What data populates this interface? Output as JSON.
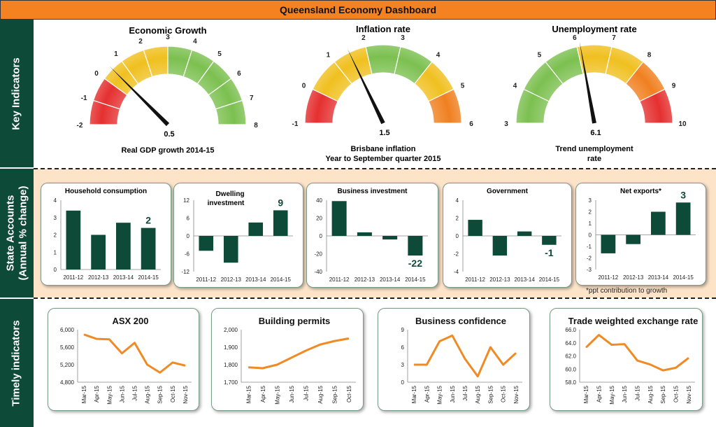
{
  "title": "Queensland Economy Dashboard",
  "sections": {
    "key": "Key Indicators",
    "state": "State Accounts (Annual % change)",
    "timely": "Timely indicators"
  },
  "footnote": "*ppt contribution to growth",
  "gauges": [
    {
      "title": "Economic Growth",
      "subtitle_lines": [
        "Real GDP growth 2014-15"
      ],
      "ticks": [
        "-2",
        "-1",
        "0",
        "1",
        "2",
        "3",
        "4",
        "5",
        "6",
        "7",
        "8"
      ],
      "min": -2,
      "max": 8,
      "value": 0.5,
      "value_label": "0.5",
      "colors": [
        "#e53030",
        "#e53030",
        "#f0c020",
        "#f0c020",
        "#f0c020",
        "#7cc050",
        "#7cc050",
        "#7cc050",
        "#7cc050",
        "#7cc050"
      ]
    },
    {
      "title": "Inflation rate",
      "subtitle_lines": [
        "Brisbane inflation",
        "Year to September quarter 2015"
      ],
      "ticks": [
        "-1",
        "0",
        "1",
        "2",
        "3",
        "4",
        "5",
        "6"
      ],
      "min": -1,
      "max": 6,
      "value": 1.5,
      "value_label": "1.5",
      "colors": [
        "#e53030",
        "#f0c020",
        "#f0c020",
        "#7cc050",
        "#7cc050",
        "#f0c020",
        "#f08020"
      ]
    },
    {
      "title": "Unemployment rate",
      "subtitle_lines": [
        "Trend unemployment",
        "rate"
      ],
      "ticks": [
        "3",
        "4",
        "5",
        "6",
        "7",
        "8",
        "9",
        "10"
      ],
      "min": 3,
      "max": 10,
      "value": 6.1,
      "value_label": "6.1",
      "colors": [
        "#7cc050",
        "#7cc050",
        "#7cc050",
        "#f0c020",
        "#f0c020",
        "#f08020",
        "#e53030"
      ]
    }
  ],
  "chart_data": [
    {
      "type": "bar",
      "title": "Household consumption",
      "categories": [
        "2011-12",
        "2012-13",
        "2013-14",
        "2014-15"
      ],
      "values": [
        3.4,
        2.0,
        2.7,
        2.4
      ],
      "ylim": [
        0,
        4
      ],
      "yticks": [
        0,
        1,
        2,
        3,
        4
      ],
      "data_label": "2"
    },
    {
      "type": "bar",
      "title": "Dwelling investment",
      "categories": [
        "2011-12",
        "2012-13",
        "2013-14",
        "2014-15"
      ],
      "values": [
        -5,
        -9,
        4.5,
        8.6
      ],
      "ylim": [
        -12,
        12
      ],
      "yticks": [
        -12,
        -6,
        0,
        6,
        12
      ],
      "data_label": "9"
    },
    {
      "type": "bar",
      "title": "Business investment",
      "categories": [
        "2011-12",
        "2012-13",
        "2013-14",
        "2014-15"
      ],
      "values": [
        39,
        4,
        -4,
        -22
      ],
      "ylim": [
        -40,
        40
      ],
      "yticks": [
        -40,
        -20,
        0,
        20,
        40
      ],
      "data_label": "-22"
    },
    {
      "type": "bar",
      "title": "Government",
      "categories": [
        "2011-12",
        "2012-13",
        "2013-14",
        "2014-15"
      ],
      "values": [
        1.8,
        -2.2,
        0.5,
        -1.0
      ],
      "ylim": [
        -4,
        4
      ],
      "yticks": [
        -4,
        -2,
        0,
        2,
        4
      ],
      "data_label": "-1"
    },
    {
      "type": "bar",
      "title": "Net exports*",
      "categories": [
        "2011-12",
        "2012-13",
        "2013-14",
        "2014-15"
      ],
      "values": [
        -1.6,
        -0.8,
        2.0,
        2.8
      ],
      "ylim": [
        -3,
        3
      ],
      "yticks": [
        -3,
        -2,
        -1,
        0,
        1,
        2,
        3
      ],
      "data_label": "3"
    },
    {
      "type": "line",
      "title": "ASX 200",
      "x": [
        "Mar-15",
        "Apr-15",
        "May-15",
        "Jun-15",
        "Jul-15",
        "Aug-15",
        "Sep-15",
        "Oct-15",
        "Nov-15"
      ],
      "values": [
        5890,
        5790,
        5780,
        5460,
        5700,
        5200,
        5020,
        5250,
        5180
      ],
      "ylim": [
        4800,
        6000
      ],
      "yticks": [
        "4,800",
        "5,200",
        "5,600",
        "6,000"
      ],
      "ytick_vals": [
        4800,
        5200,
        5600,
        6000
      ]
    },
    {
      "type": "line",
      "title": "Building permits",
      "x": [
        "Mar-15",
        "Apr-15",
        "May-15",
        "Jun-15",
        "Jul-15",
        "Aug-15",
        "Sep-15",
        "Oct-15"
      ],
      "values": [
        1785,
        1780,
        1800,
        1840,
        1880,
        1915,
        1935,
        1950
      ],
      "ylim": [
        1700,
        2000
      ],
      "yticks": [
        "1,700",
        "1,800",
        "1,900",
        "2,000"
      ],
      "ytick_vals": [
        1700,
        1800,
        1900,
        2000
      ]
    },
    {
      "type": "line",
      "title": "Business confidence",
      "x": [
        "Mar-15",
        "Apr-15",
        "May-15",
        "Jun-15",
        "Jul-15",
        "Aug-15",
        "Sep-15",
        "Oct-15",
        "Nov-15"
      ],
      "values": [
        3,
        3,
        7,
        8,
        4,
        1,
        6,
        3,
        5
      ],
      "ylim": [
        0,
        9
      ],
      "yticks": [
        "0",
        "3",
        "6",
        "9"
      ],
      "ytick_vals": [
        0,
        3,
        6,
        9
      ]
    },
    {
      "type": "line",
      "title": "Trade weighted exchange rate",
      "x": [
        "Mar-15",
        "Apr-15",
        "May-15",
        "Jun-15",
        "Jul-15",
        "Aug-15",
        "Sep-15",
        "Oct-15",
        "Nov-15"
      ],
      "values": [
        63.3,
        65.2,
        63.7,
        63.8,
        61.3,
        60.7,
        59.8,
        60.2,
        61.7
      ],
      "ylim": [
        58,
        66
      ],
      "yticks": [
        "58.0",
        "60.0",
        "62.0",
        "64.0",
        "66.0"
      ],
      "ytick_vals": [
        58,
        60,
        62,
        64,
        66
      ]
    }
  ],
  "theme": {
    "dark_green": "#0e4a38",
    "orange": "#f58220",
    "line_orange": "#f08a24",
    "peach": "#fde3c8"
  }
}
